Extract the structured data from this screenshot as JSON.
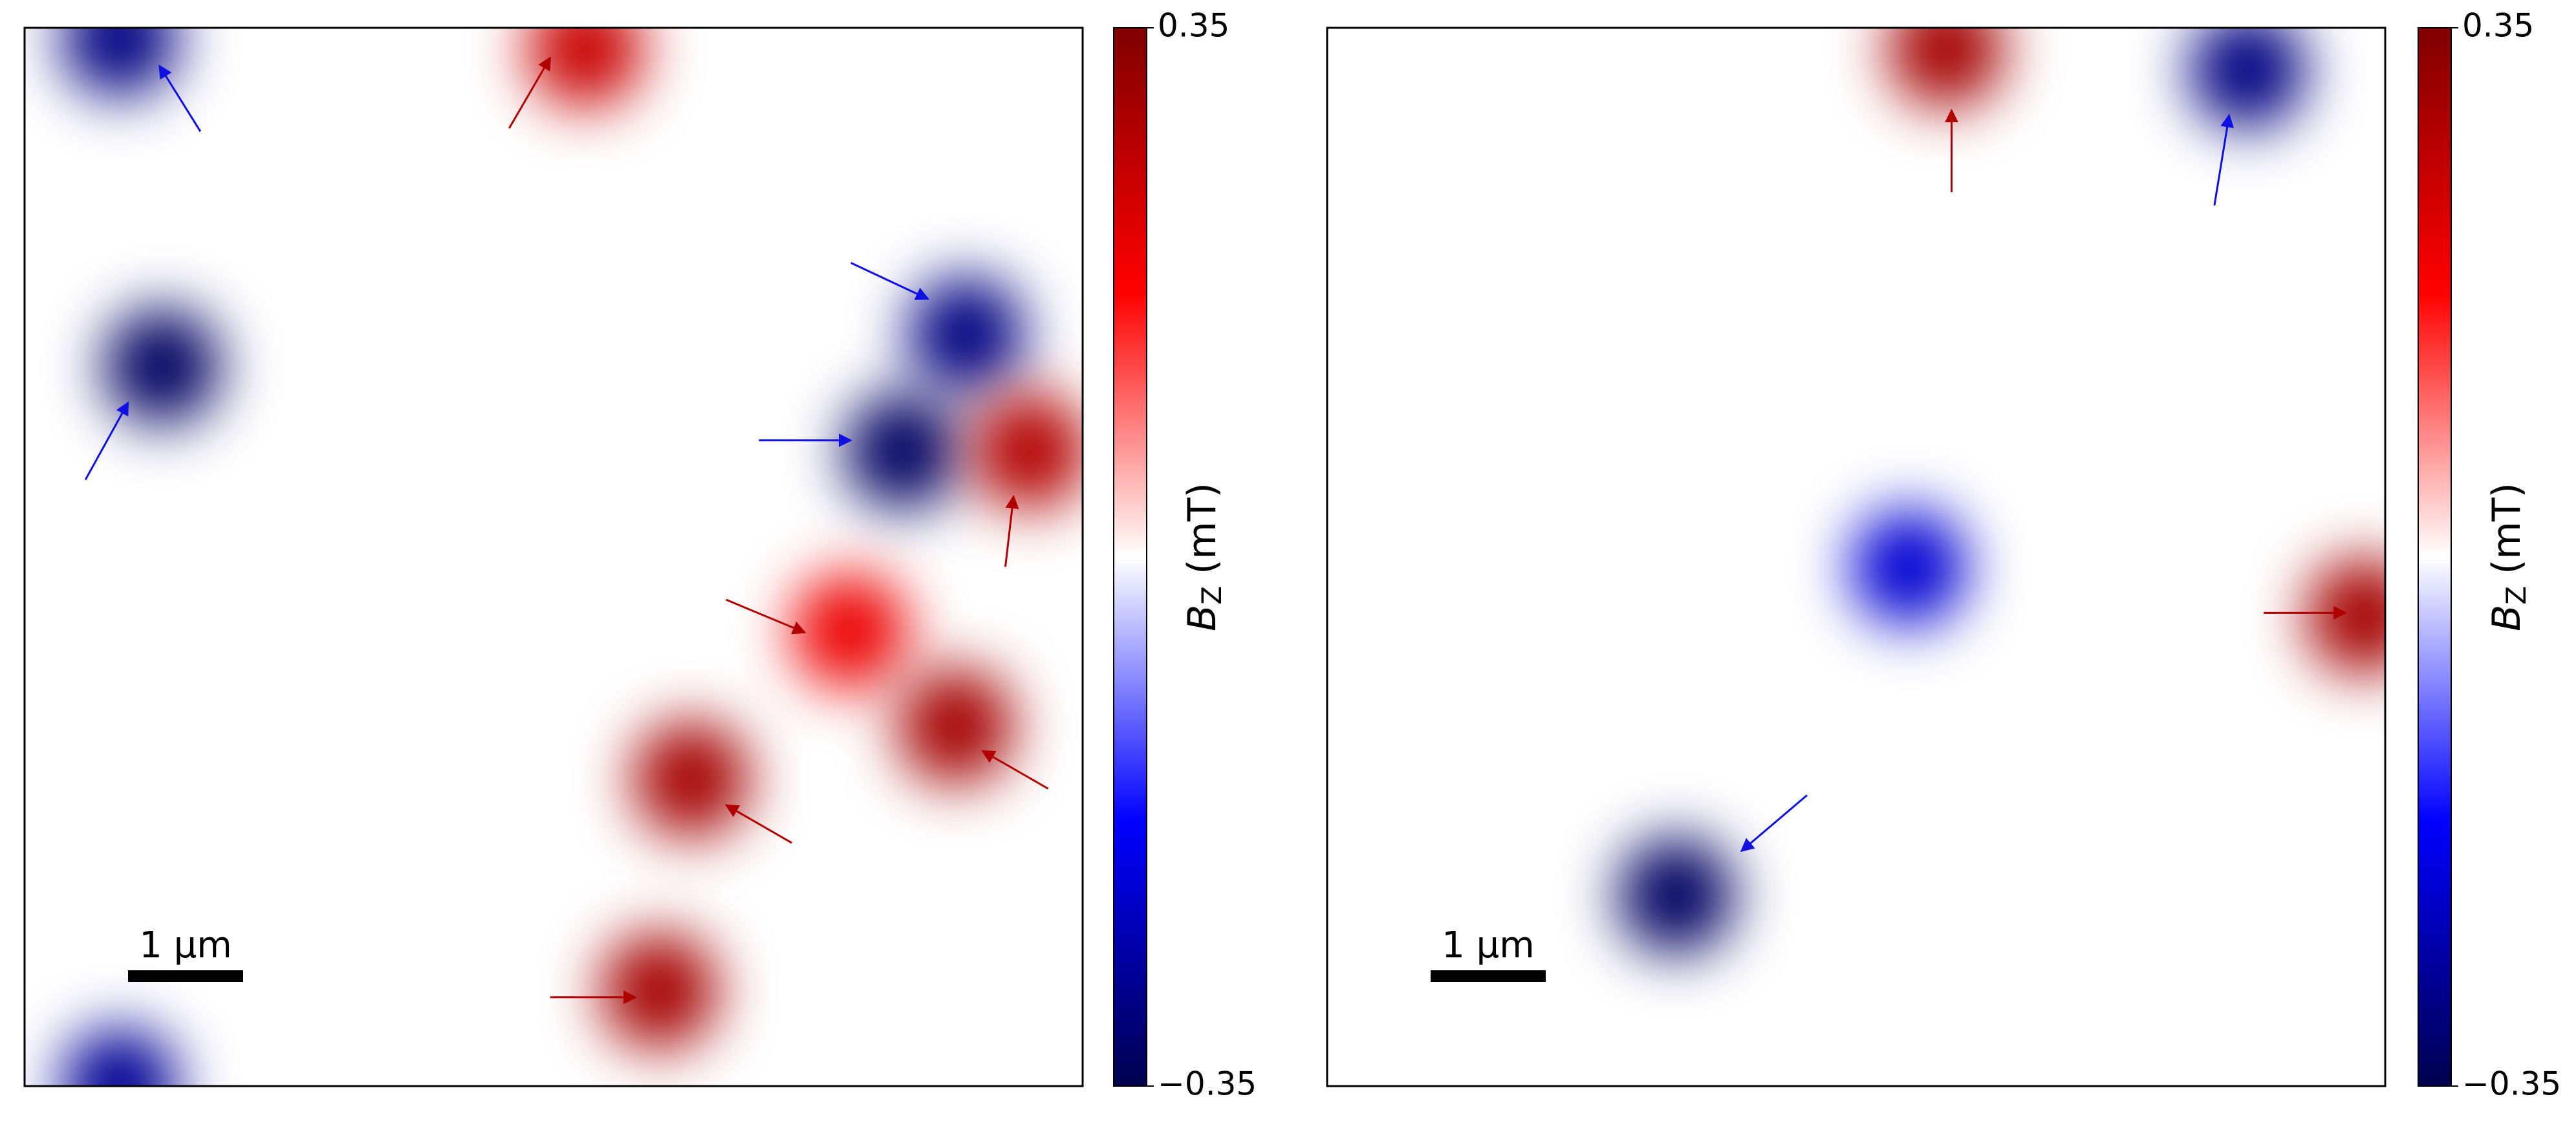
{
  "chart_data": [
    {
      "type": "heatmap",
      "values": [
        -0.3,
        0.25,
        -0.3,
        -0.33,
        -0.33,
        0.28,
        0.2,
        0.3,
        0.3,
        0.3,
        -0.28
      ],
      "colorbar": {
        "lim": [
          -0.35,
          0.35
        ],
        "ticks": [
          0.35,
          {
            "value": -0.35,
            "label": "−0.35"
          }
        ],
        "label": {
          "symbol": "B",
          "subscript": "Z",
          "unit": "(mT)"
        }
      },
      "scalebar": "1 μm"
    },
    {
      "type": "heatmap",
      "values": [
        0.3,
        -0.3,
        0.3,
        -0.33,
        -0.22
      ],
      "colorbar": {
        "lim": [
          -0.35,
          0.35
        ],
        "ticks": [
          0.35,
          {
            "value": -0.35,
            "label": "−0.35"
          }
        ],
        "label": {
          "symbol": "B",
          "subscript": "Z",
          "unit": "(mT)"
        }
      },
      "scalebar": "1 μm"
    }
  ]
}
